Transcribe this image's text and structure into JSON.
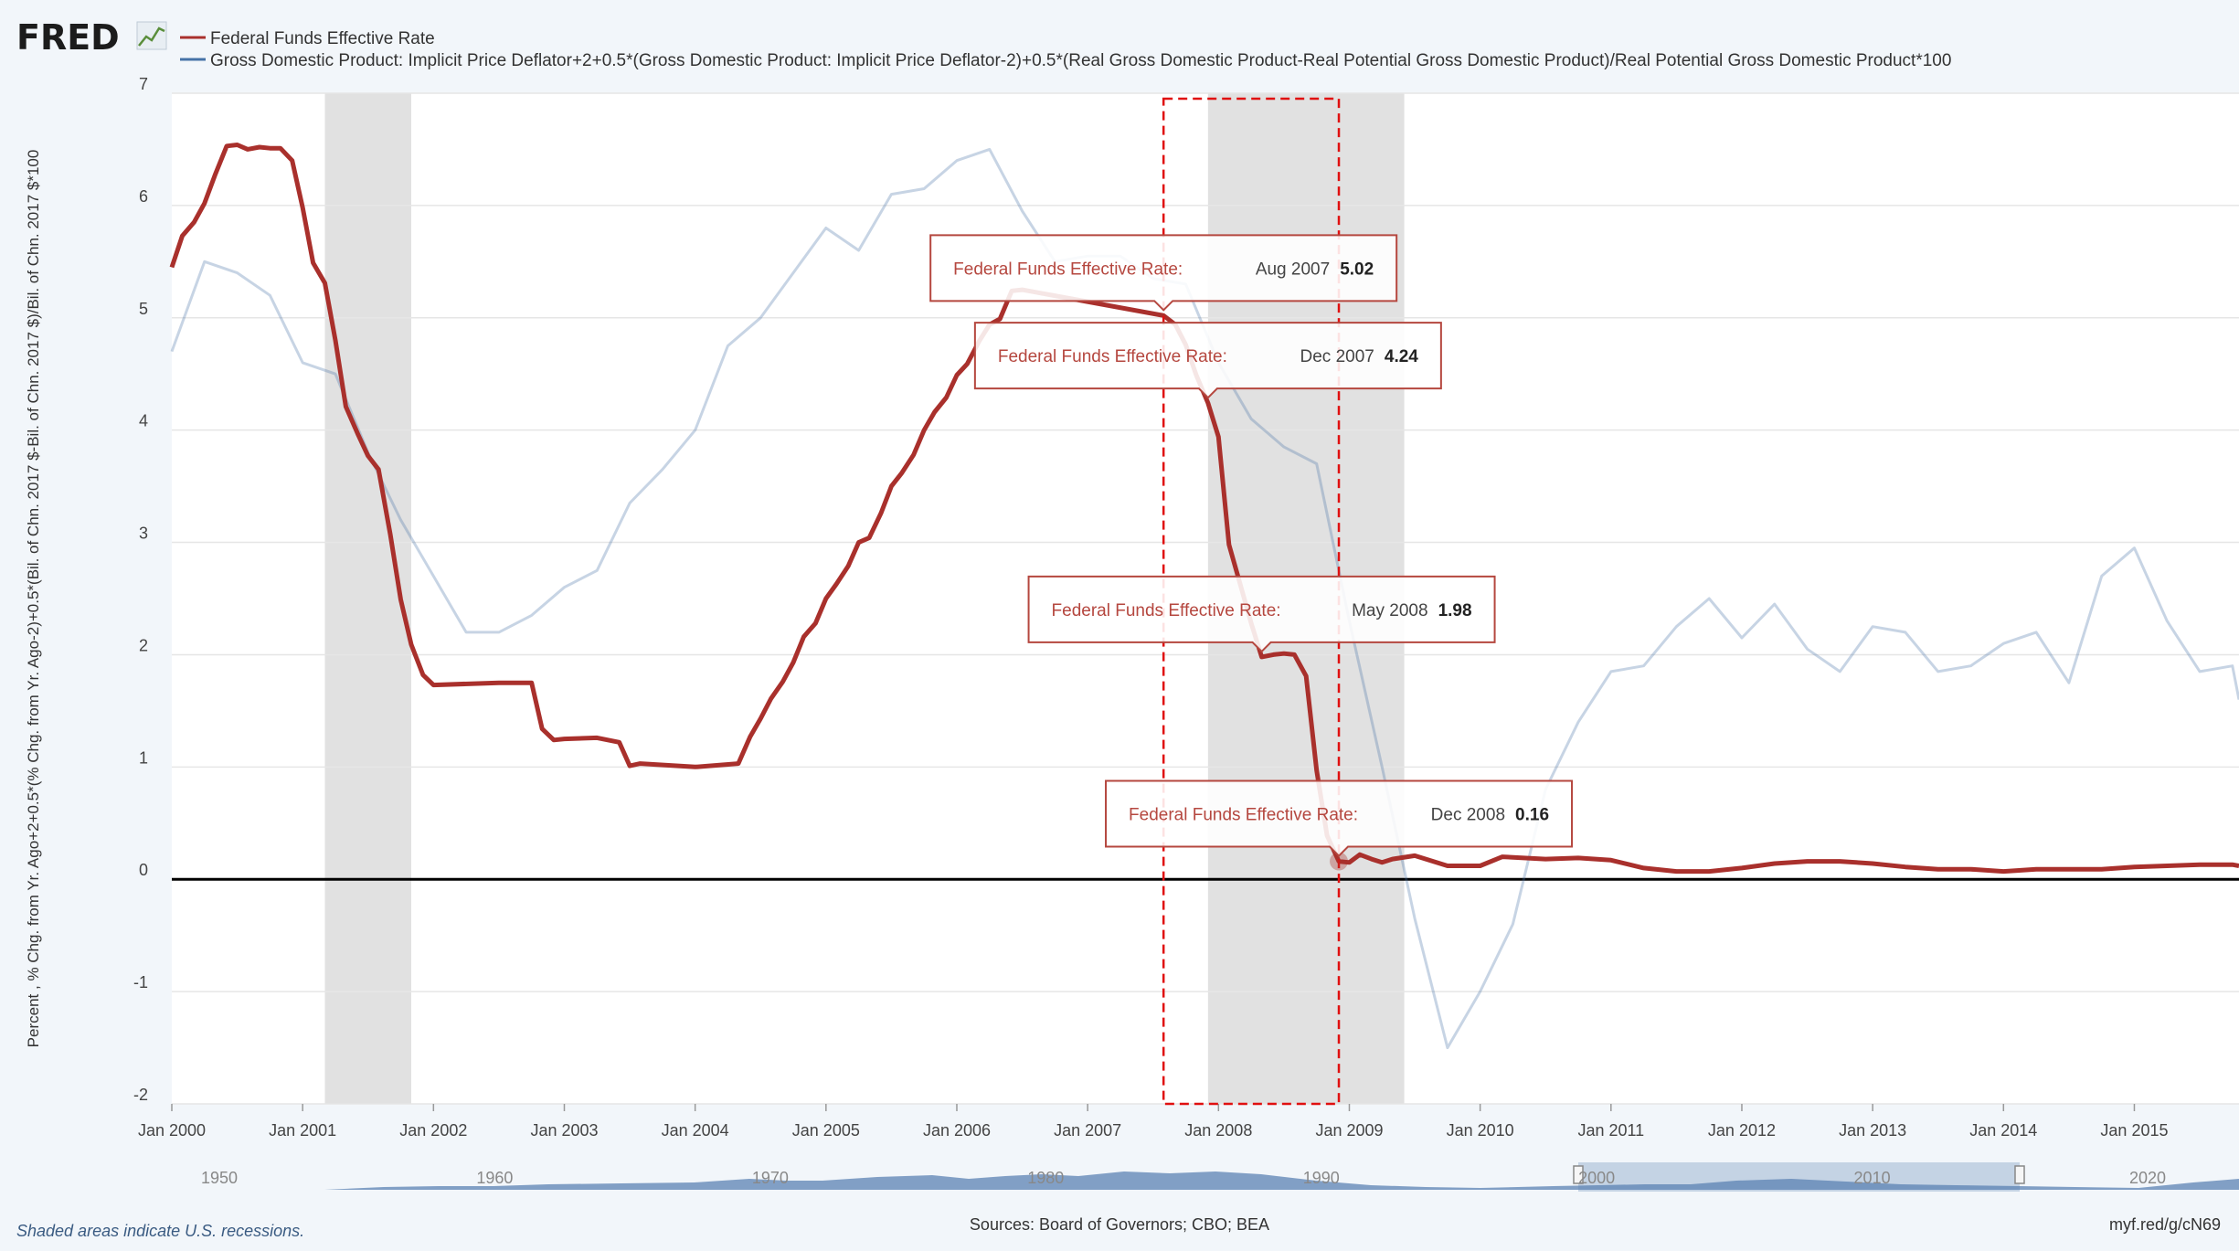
{
  "logo": {
    "text": "FRED"
  },
  "legend": [
    {
      "name": "Federal Funds Effective Rate",
      "color": "#a9302c"
    },
    {
      "name": "Gross Domestic Product: Implicit Price Deflator+2+0.5*(Gross Domestic Product: Implicit Price Deflator-2)+0.5*(Real Gross Domestic Product-Real Potential Gross Domestic Product)/Real Potential Gross Domestic Product*100",
      "color": "#4572a7"
    }
  ],
  "footer": {
    "recession_note": "Shaded areas indicate U.S. recessions.",
    "sources": "Sources: Board of Governors; CBO; BEA",
    "link": "myf.red/g/cN69"
  },
  "navigator": {
    "labels": [
      "1950",
      "1960",
      "1970",
      "1980",
      "1990",
      "2000",
      "2010",
      "2020"
    ]
  },
  "tooltips": [
    {
      "series": "Federal Funds Effective Rate:",
      "date": "Aug 2007",
      "value": "5.02",
      "x": 2007.58,
      "y": 5.02
    },
    {
      "series": "Federal Funds Effective Rate:",
      "date": "Dec 2007",
      "value": "4.24",
      "x": 2007.92,
      "y": 4.24
    },
    {
      "series": "Federal Funds Effective Rate:",
      "date": "May 2008",
      "value": "1.98",
      "x": 2008.33,
      "y": 1.98
    },
    {
      "series": "Federal Funds Effective Rate:",
      "date": "Dec 2008",
      "value": "0.16",
      "x": 2008.92,
      "y": 0.16
    }
  ],
  "chart_data": {
    "type": "line",
    "title": "",
    "xlabel": "",
    "ylabel": "Percent , % Chg. from Yr. Ago+2+0.5*(% Chg. from Yr. Ago-2)+0.5*(Bil. of Chn. 2017 $-Bil. of Chn. 2017 $)/Bil. of Chn. 2017 $*100",
    "xlim": [
      2000.0,
      2015.8
    ],
    "ylim": [
      -2,
      7
    ],
    "yticks": [
      -2,
      -1,
      0,
      1,
      2,
      3,
      4,
      5,
      6,
      7
    ],
    "xticks": [
      {
        "label": "Jan 2000",
        "x": 2000.0
      },
      {
        "label": "Jan 2001",
        "x": 2001.0
      },
      {
        "label": "Jan 2002",
        "x": 2002.0
      },
      {
        "label": "Jan 2003",
        "x": 2003.0
      },
      {
        "label": "Jan 2004",
        "x": 2004.0
      },
      {
        "label": "Jan 2005",
        "x": 2005.0
      },
      {
        "label": "Jan 2006",
        "x": 2006.0
      },
      {
        "label": "Jan 2007",
        "x": 2007.0
      },
      {
        "label": "Jan 2008",
        "x": 2008.0
      },
      {
        "label": "Jan 2009",
        "x": 2009.0
      },
      {
        "label": "Jan 2010",
        "x": 2010.0
      },
      {
        "label": "Jan 2011",
        "x": 2011.0
      },
      {
        "label": "Jan 2012",
        "x": 2012.0
      },
      {
        "label": "Jan 2013",
        "x": 2013.0
      },
      {
        "label": "Jan 2014",
        "x": 2014.0
      },
      {
        "label": "Jan 2015",
        "x": 2015.0
      }
    ],
    "recessions": [
      [
        2001.17,
        2001.83
      ],
      [
        2007.92,
        2009.42
      ]
    ],
    "highlight_box": [
      2007.58,
      2008.92
    ],
    "series": [
      {
        "name": "Federal Funds Effective Rate",
        "color": "#a9302c",
        "x": [
          2000.0,
          2000.08,
          2000.17,
          2000.25,
          2000.33,
          2000.42,
          2000.5,
          2000.58,
          2000.67,
          2000.75,
          2000.83,
          2000.92,
          2001.0,
          2001.08,
          2001.17,
          2001.25,
          2001.33,
          2001.42,
          2001.5,
          2001.58,
          2001.67,
          2001.75,
          2001.83,
          2001.92,
          2002.0,
          2002.5,
          2002.75,
          2002.83,
          2002.92,
          2003.0,
          2003.25,
          2003.42,
          2003.5,
          2003.58,
          2004.0,
          2004.33,
          2004.42,
          2004.5,
          2004.58,
          2004.67,
          2004.75,
          2004.83,
          2004.92,
          2005.0,
          2005.08,
          2005.17,
          2005.25,
          2005.33,
          2005.42,
          2005.5,
          2005.58,
          2005.67,
          2005.75,
          2005.83,
          2005.92,
          2006.0,
          2006.08,
          2006.17,
          2006.25,
          2006.33,
          2006.42,
          2006.5,
          2007.58,
          2007.67,
          2007.75,
          2007.83,
          2007.92,
          2008.0,
          2008.08,
          2008.17,
          2008.25,
          2008.33,
          2008.42,
          2008.5,
          2008.58,
          2008.67,
          2008.75,
          2008.83,
          2008.92,
          2009.0,
          2009.08,
          2009.17,
          2009.25,
          2009.33,
          2009.5,
          2009.75,
          2010.0,
          2010.17,
          2010.5,
          2010.75,
          2011.0,
          2011.25,
          2011.5,
          2011.75,
          2012.0,
          2012.25,
          2012.5,
          2012.75,
          2013.0,
          2013.25,
          2013.5,
          2013.75,
          2014.0,
          2014.25,
          2014.5,
          2014.75,
          2015.0,
          2015.25,
          2015.5,
          2015.75,
          2015.8
        ],
        "y": [
          5.45,
          5.73,
          5.85,
          6.02,
          6.27,
          6.53,
          6.54,
          6.5,
          6.52,
          6.51,
          6.51,
          6.4,
          5.98,
          5.49,
          5.31,
          4.8,
          4.21,
          3.97,
          3.77,
          3.65,
          3.07,
          2.49,
          2.09,
          1.82,
          1.73,
          1.75,
          1.75,
          1.34,
          1.24,
          1.25,
          1.26,
          1.22,
          1.01,
          1.03,
          1.0,
          1.03,
          1.27,
          1.43,
          1.61,
          1.76,
          1.93,
          2.16,
          2.28,
          2.5,
          2.63,
          2.79,
          3.0,
          3.04,
          3.26,
          3.5,
          3.62,
          3.78,
          4.0,
          4.16,
          4.29,
          4.49,
          4.59,
          4.79,
          4.94,
          4.99,
          5.24,
          5.25,
          5.02,
          4.94,
          4.76,
          4.49,
          4.24,
          3.94,
          2.98,
          2.61,
          2.28,
          1.98,
          2.0,
          2.01,
          2.0,
          1.81,
          0.97,
          0.39,
          0.16,
          0.15,
          0.22,
          0.18,
          0.15,
          0.18,
          0.21,
          0.12,
          0.12,
          0.2,
          0.18,
          0.19,
          0.17,
          0.1,
          0.07,
          0.07,
          0.1,
          0.14,
          0.16,
          0.16,
          0.14,
          0.11,
          0.09,
          0.09,
          0.07,
          0.09,
          0.09,
          0.09,
          0.11,
          0.12,
          0.13,
          0.13,
          0.12
        ],
        "opacity": 1
      },
      {
        "name": "Gross Domestic Product: Implicit Price Deflator+2+0.5*(Gross Domestic Product: Implicit Price Deflator-2)+0.5*(Real Gross Domestic Product-Real Potential Gross Domestic Product)/Real Potential Gross Domestic Product*100",
        "color": "#4572a7",
        "x": [
          2000.0,
          2000.25,
          2000.5,
          2000.75,
          2001.0,
          2001.25,
          2001.5,
          2001.75,
          2002.0,
          2002.25,
          2002.5,
          2002.75,
          2003.0,
          2003.25,
          2003.5,
          2003.75,
          2004.0,
          2004.25,
          2004.5,
          2004.75,
          2005.0,
          2005.25,
          2005.5,
          2005.75,
          2006.0,
          2006.25,
          2006.5,
          2006.75,
          2007.0,
          2007.25,
          2007.5,
          2007.75,
          2008.0,
          2008.25,
          2008.5,
          2008.75,
          2009.0,
          2009.25,
          2009.5,
          2009.75,
          2010.0,
          2010.25,
          2010.5,
          2010.75,
          2011.0,
          2011.25,
          2011.5,
          2011.75,
          2012.0,
          2012.25,
          2012.5,
          2012.75,
          2013.0,
          2013.25,
          2013.5,
          2013.75,
          2014.0,
          2014.25,
          2014.5,
          2014.75,
          2015.0,
          2015.25,
          2015.5,
          2015.75,
          2015.8
        ],
        "y": [
          4.7,
          5.5,
          5.4,
          5.2,
          4.6,
          4.5,
          3.8,
          3.2,
          2.7,
          2.2,
          2.2,
          2.35,
          2.6,
          2.75,
          3.35,
          3.65,
          4.0,
          4.75,
          5.0,
          5.4,
          5.8,
          5.6,
          6.1,
          6.15,
          6.4,
          6.5,
          5.95,
          5.5,
          5.55,
          5.55,
          5.35,
          5.3,
          4.6,
          4.1,
          3.85,
          3.7,
          2.3,
          1.0,
          -0.35,
          -1.5,
          -1.0,
          -0.4,
          0.8,
          1.4,
          1.85,
          1.9,
          2.25,
          2.5,
          2.15,
          2.45,
          2.05,
          1.85,
          2.25,
          2.2,
          1.85,
          1.9,
          2.1,
          2.2,
          1.75,
          2.7,
          2.95,
          2.3,
          1.85,
          1.9,
          1.6
        ],
        "opacity": 0.3
      }
    ]
  }
}
